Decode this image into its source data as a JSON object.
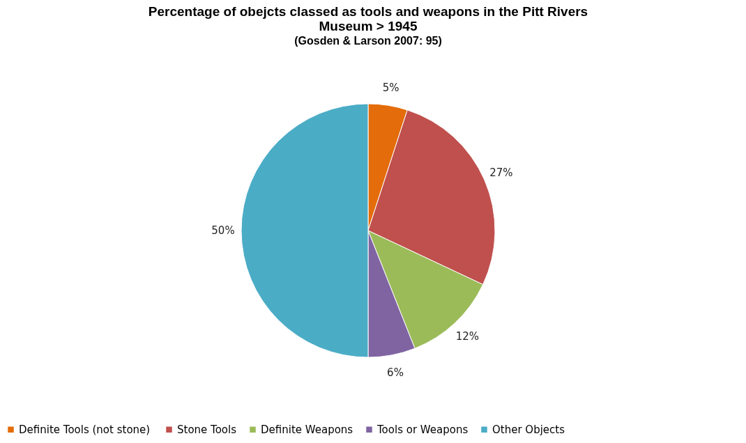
{
  "chart_data": {
    "type": "pie",
    "title": "Percentage of obejcts classed as tools and weapons in the Pitt Rivers Museum > 1945",
    "subtitle": "(Gosden & Larson 2007: 95)",
    "categories": [
      "Definite Tools  (not stone)",
      "Stone Tools",
      "Definite Weapons",
      "Tools or Weapons",
      "Other Objects"
    ],
    "values": [
      5,
      27,
      12,
      6,
      50
    ],
    "value_labels": [
      "5%",
      "27%",
      "12%",
      "6%",
      "50%"
    ],
    "colors": [
      "#e46c0a",
      "#c0504d",
      "#9bbb59",
      "#8064a2",
      "#4bacc6"
    ],
    "legend": "bottom"
  }
}
